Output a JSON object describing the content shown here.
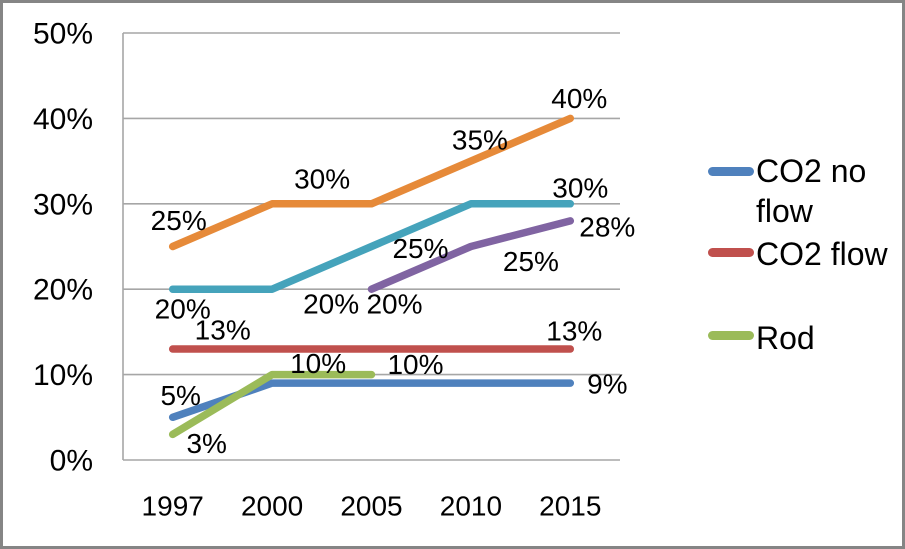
{
  "chart_data": {
    "type": "line",
    "categories": [
      "1997",
      "2000",
      "2005",
      "2010",
      "2015"
    ],
    "y_ticks": [
      "0%",
      "10%",
      "20%",
      "30%",
      "40%",
      "50%"
    ],
    "ylim": [
      0,
      50
    ],
    "grid": true,
    "legend_position": "right",
    "axis_color": "#A6A6A6",
    "text_color": "#000000",
    "background": "#FFFFFF",
    "series": [
      {
        "name": "CO2 no flow",
        "in_legend": true,
        "color": "#4F81BD",
        "values": [
          5,
          9,
          9,
          9,
          9
        ],
        "labels": [
          {
            "i": 0,
            "text": "5%",
            "dx": 8,
            "dy": -22
          },
          {
            "i": 4,
            "text": "9%",
            "dx": 37,
            "dy": 1
          }
        ]
      },
      {
        "name": "CO2 flow",
        "in_legend": true,
        "color": "#C0504D",
        "values": [
          13,
          13,
          13,
          13,
          13
        ],
        "labels": [
          {
            "i": 0,
            "text": "13%",
            "dx": 50,
            "dy": -19
          },
          {
            "i": 4,
            "text": "13%",
            "dx": 4,
            "dy": -18
          }
        ]
      },
      {
        "name": "Rod",
        "in_legend": true,
        "color": "#9BBB59",
        "values": [
          3,
          10,
          10,
          null,
          null
        ],
        "labels": [
          {
            "i": 0,
            "text": "3%",
            "dx": 34,
            "dy": 9
          },
          {
            "i": 1,
            "text": "10%",
            "dx": 46,
            "dy": -11
          },
          {
            "i": 2,
            "text": "10%",
            "dx": 44,
            "dy": -10
          }
        ]
      },
      {
        "name": "",
        "in_legend": false,
        "color": "#8064A2",
        "values": [
          null,
          null,
          20,
          25,
          28
        ],
        "labels": [
          {
            "i": 2,
            "text": "20%",
            "dx": 23,
            "dy": 15
          },
          {
            "i": 3,
            "text": "25%",
            "dx": 60,
            "dy": 15
          },
          {
            "i": 4,
            "text": "28%",
            "dx": 37,
            "dy": 6
          }
        ]
      },
      {
        "name": "",
        "in_legend": false,
        "color": "#45A3BB",
        "values": [
          20,
          20,
          25,
          30,
          30
        ],
        "labels": [
          {
            "i": 0,
            "text": "20%",
            "dx": 10,
            "dy": 20
          },
          {
            "i": 1,
            "text": "20%",
            "dx": 59,
            "dy": 15
          },
          {
            "i": 2,
            "text": "25%",
            "dx": 49,
            "dy": 2
          },
          {
            "i": 4,
            "text": "30%",
            "dx": 10,
            "dy": -16
          }
        ]
      },
      {
        "name": "",
        "in_legend": false,
        "color": "#E68A39",
        "values": [
          25,
          30,
          30,
          35,
          40
        ],
        "labels": [
          {
            "i": 0,
            "text": "25%",
            "dx": 6,
            "dy": -26
          },
          {
            "i": 1,
            "text": "30%",
            "dx": 50,
            "dy": -25
          },
          {
            "i": 3,
            "text": "35%",
            "dx": 9,
            "dy": -21
          },
          {
            "i": 4,
            "text": "40%",
            "dx": 9,
            "dy": -20
          }
        ]
      }
    ]
  }
}
